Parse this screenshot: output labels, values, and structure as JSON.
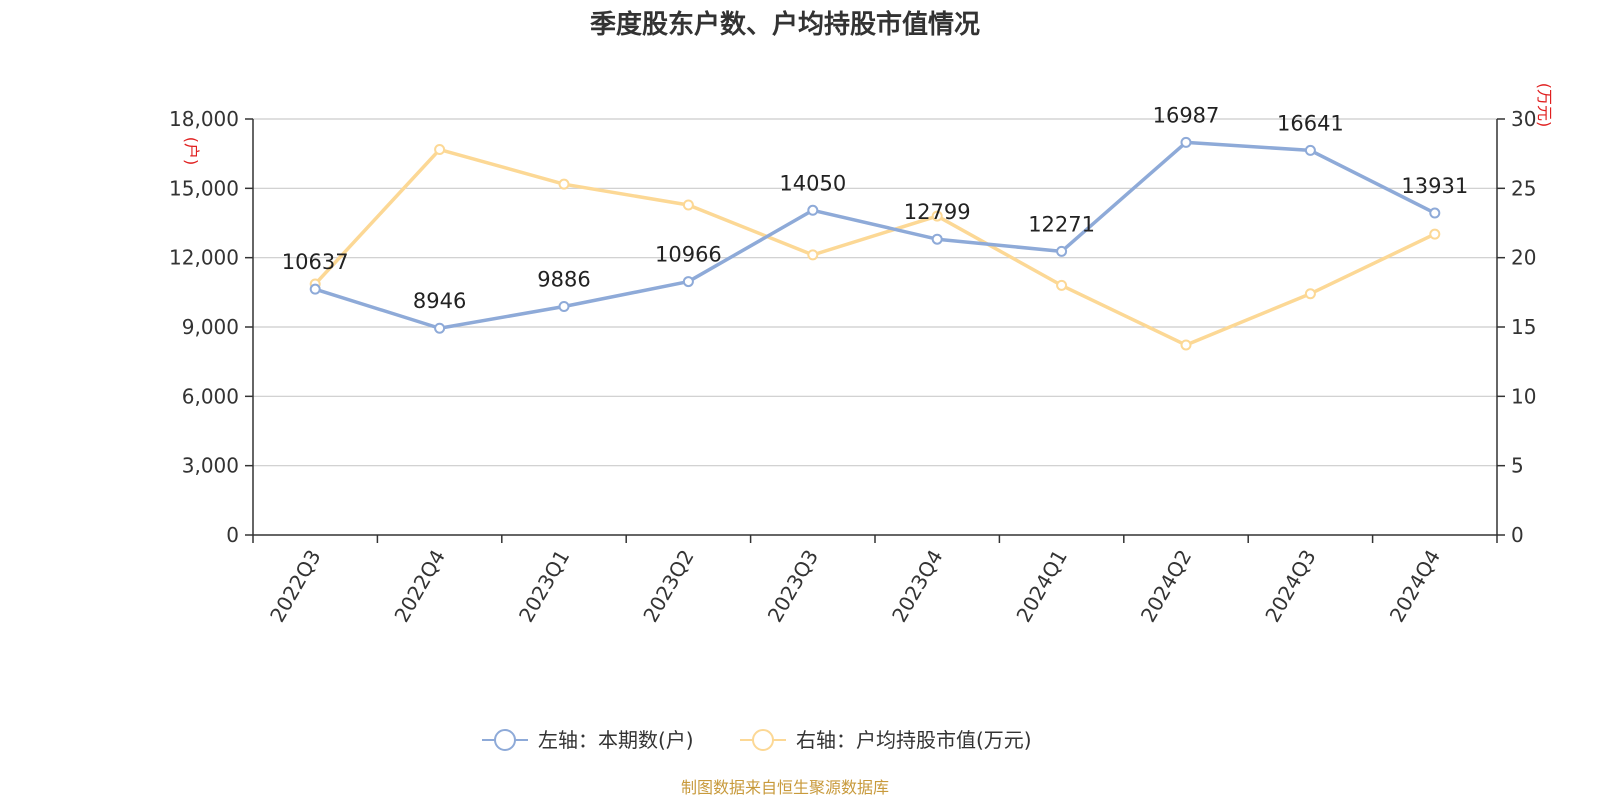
{
  "colors": {
    "left_series": "#8eaad8",
    "right_series": "#fcd895",
    "grid": "#cccccc",
    "axis": "#333333",
    "unit_label": "#e02020",
    "source": "#c89a3c"
  },
  "chart_data": {
    "type": "line",
    "title": "季度股东户数、户均持股市值情况",
    "categories": [
      "2022Q3",
      "2022Q4",
      "2023Q1",
      "2023Q2",
      "2023Q3",
      "2023Q4",
      "2024Q1",
      "2024Q2",
      "2024Q3",
      "2024Q4"
    ],
    "left_axis": {
      "unit": "(户)",
      "ylim": [
        0,
        18000
      ],
      "ticks": [
        "0",
        "3,000",
        "6,000",
        "9,000",
        "12,000",
        "15,000",
        "18,000"
      ],
      "tick_values": [
        0,
        3000,
        6000,
        9000,
        12000,
        15000,
        18000
      ]
    },
    "right_axis": {
      "unit": "(万元)",
      "ylim": [
        0,
        30
      ],
      "ticks": [
        "0",
        "5",
        "10",
        "15",
        "20",
        "25",
        "30"
      ],
      "tick_values": [
        0,
        5,
        10,
        15,
        20,
        25,
        30
      ]
    },
    "series": [
      {
        "name": "左轴：本期数(户)",
        "axis": "left",
        "values": [
          10637,
          8946,
          9886,
          10966,
          14050,
          12799,
          12271,
          16987,
          16641,
          13931
        ],
        "data_labels": [
          "10637",
          "8946",
          "9886",
          "10966",
          "14050",
          "12799",
          "12271",
          "16987",
          "16641",
          "13931"
        ]
      },
      {
        "name": "右轴：户均持股市值(万元)",
        "axis": "right",
        "values": [
          18.1,
          27.8,
          25.3,
          23.8,
          20.2,
          23.0,
          18.0,
          13.7,
          17.4,
          21.7
        ]
      }
    ],
    "grid": true,
    "legend_position": "bottom-center"
  },
  "source_text": "制图数据来自恒生聚源数据库"
}
